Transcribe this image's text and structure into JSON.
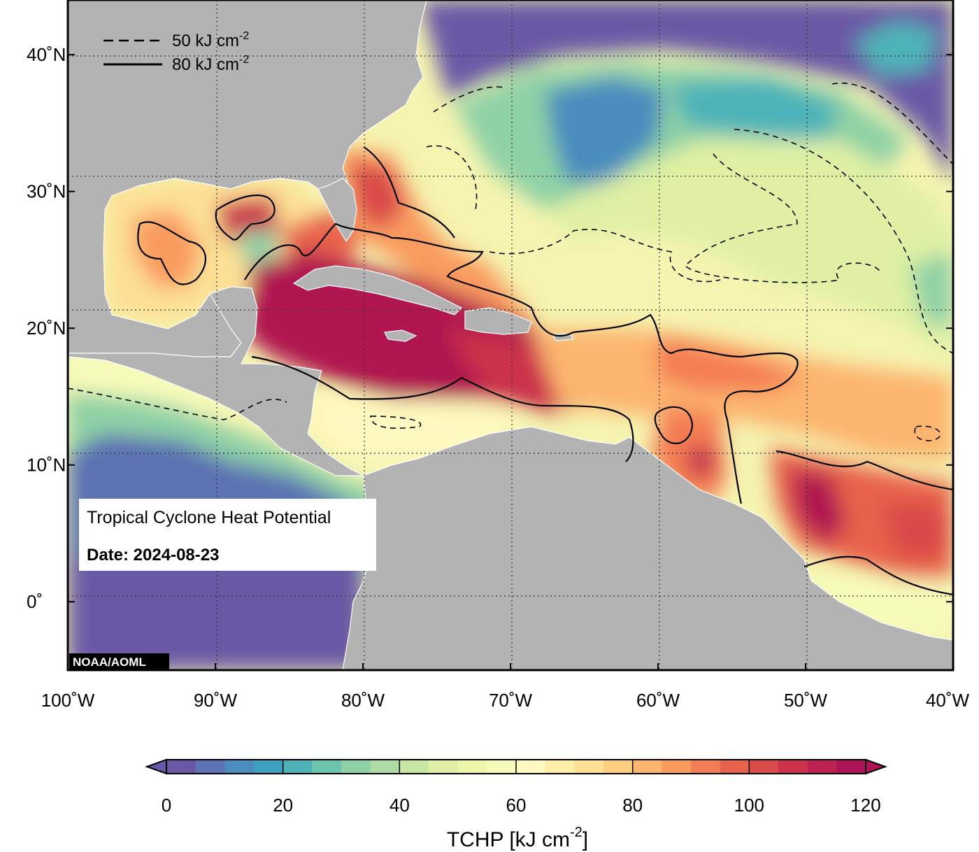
{
  "map": {
    "lon_range": [
      -100,
      -40
    ],
    "lat_range": [
      -5,
      44
    ],
    "x_ticks": [
      {
        "lon": -100,
        "label": "100˚W"
      },
      {
        "lon": -90,
        "label": "90˚W"
      },
      {
        "lon": -80,
        "label": "80˚W"
      },
      {
        "lon": -70,
        "label": "70˚W"
      },
      {
        "lon": -60,
        "label": "60˚W"
      },
      {
        "lon": -50,
        "label": "50˚W"
      },
      {
        "lon": -40,
        "label": "40˚W"
      }
    ],
    "y_ticks": [
      {
        "lat": 40,
        "label": "40˚N"
      },
      {
        "lat": 30,
        "label": "30˚N"
      },
      {
        "lat": 20,
        "label": "20˚N"
      },
      {
        "lat": 10,
        "label": "10˚N"
      },
      {
        "lat": 0,
        "label": "0˚"
      }
    ],
    "grid": "dotted",
    "colors": {
      "land": "#b3b3b3",
      "low_heat": "#6a58a6",
      "high_heat": "#b0174f"
    }
  },
  "legend": {
    "placement": "top-left",
    "entries": [
      {
        "style": "dashed",
        "text": "50 kJ cm",
        "sup": "-2"
      },
      {
        "style": "solid",
        "text": "80 kJ cm",
        "sup": "-2"
      }
    ]
  },
  "info_box": {
    "title": "Tropical Cyclone Heat Potential",
    "date": "Date: 2024-08-23"
  },
  "credit": "NOAA/AOML",
  "colorbar": {
    "min": 0,
    "max": 120,
    "step": 5,
    "ticks": [
      {
        "value": 0,
        "label": "0"
      },
      {
        "value": 20,
        "label": "20"
      },
      {
        "value": 40,
        "label": "40"
      },
      {
        "value": 60,
        "label": "60"
      },
      {
        "value": 80,
        "label": "80"
      },
      {
        "value": 100,
        "label": "100"
      },
      {
        "value": 120,
        "label": "120"
      }
    ],
    "title": "TCHP [kJ cm",
    "title_sup": "-2",
    "title_end": "]",
    "colors": [
      "#6a58a6",
      "#5c72b2",
      "#4a8cbe",
      "#3ea0c0",
      "#4db3b8",
      "#6cc4ad",
      "#8fd1a6",
      "#afdca4",
      "#c9e6a2",
      "#dff0a4",
      "#eef7ab",
      "#f7fbba",
      "#fef9c0",
      "#feeeaa",
      "#fde095",
      "#fdcd80",
      "#fcb56f",
      "#f99b5f",
      "#f47e53",
      "#e8624b",
      "#da4a49",
      "#cc334b",
      "#bd2250",
      "#ad1455"
    ]
  }
}
